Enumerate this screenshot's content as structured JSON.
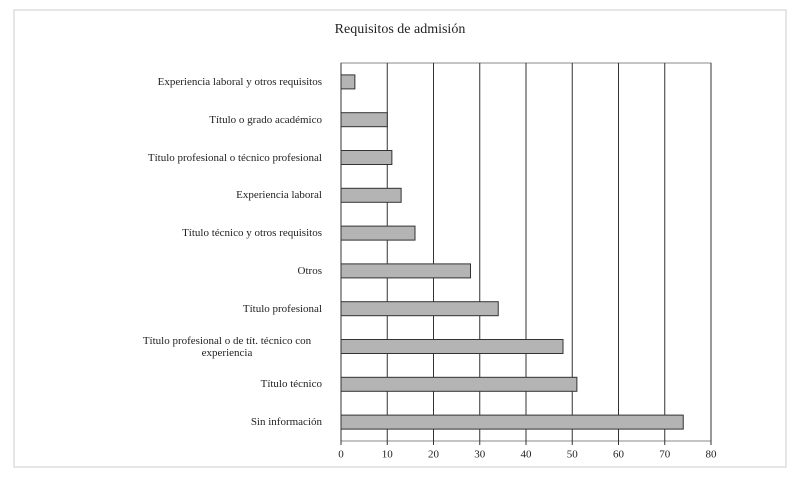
{
  "chart_data": {
    "type": "bar",
    "orientation": "horizontal",
    "title": "Requisitos de admisión",
    "categories": [
      "Experiencia laboral y otros requisitos",
      "Título o grado académico",
      "Título profesional o técnico profesional",
      "Experiencia laboral",
      "Título técnico y otros requisitos",
      "Otros",
      "Título profesional",
      "Título profesional o de tít. técnico con experiencia",
      "Título técnico",
      "Sin información"
    ],
    "values": [
      3,
      10,
      11,
      13,
      16,
      28,
      34,
      48,
      51,
      74
    ],
    "color": "#b4b4b4",
    "xlim": [
      0,
      80
    ],
    "xticks": [
      0,
      10,
      20,
      30,
      40,
      50,
      60,
      70,
      80
    ],
    "grid": true
  }
}
